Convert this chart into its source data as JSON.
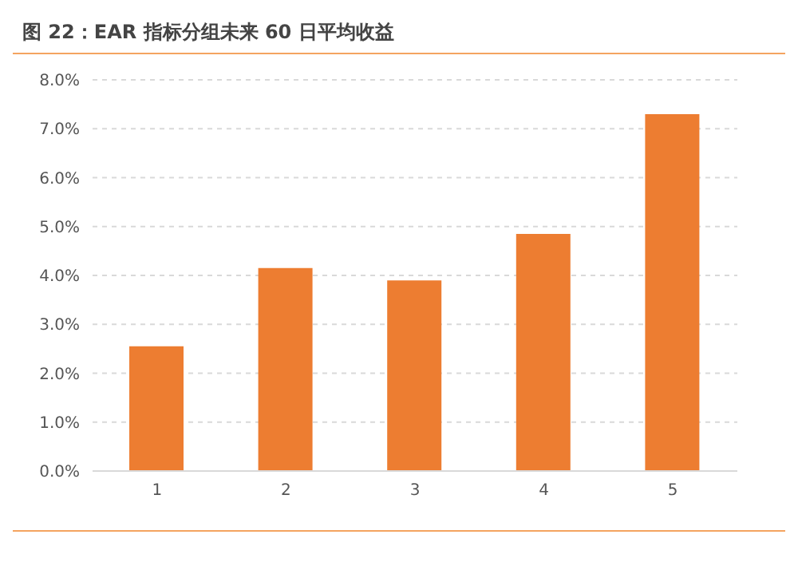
{
  "chart_data": {
    "type": "bar",
    "title": "图 22：EAR 指标分组未来 60 日平均收益",
    "categories": [
      "1",
      "2",
      "3",
      "4",
      "5"
    ],
    "values": [
      2.55,
      4.15,
      3.9,
      4.85,
      7.3
    ],
    "color": "#ed7d31",
    "ylim": [
      0,
      8
    ],
    "yticks": [
      {
        "value": 0,
        "label": "0.0%"
      },
      {
        "value": 1,
        "label": "1.0%"
      },
      {
        "value": 2,
        "label": "2.0%"
      },
      {
        "value": 3,
        "label": "3.0%"
      },
      {
        "value": 4,
        "label": "4.0%"
      },
      {
        "value": 5,
        "label": "5.0%"
      },
      {
        "value": 6,
        "label": "6.0%"
      },
      {
        "value": 7,
        "label": "7.0%"
      },
      {
        "value": 8,
        "label": "8.0%"
      }
    ],
    "grid": "y"
  }
}
